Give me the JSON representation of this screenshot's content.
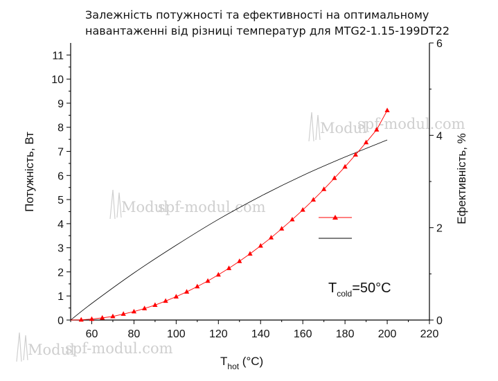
{
  "chart_data": {
    "type": "line",
    "title_line1": "Залежність потужності та ефективності на оптимальному",
    "title_line2": "навантаженні від різниці температур для MTG2-1.15-199DT22",
    "xlabel_main": "T",
    "xlabel_sub": "hot",
    "xlabel_unit": " (°C)",
    "ylabel_left": "Потужність, Вт",
    "ylabel_right": "Ефективність, %",
    "xlim": [
      50,
      220
    ],
    "ylim_left": [
      0,
      11.5
    ],
    "ylim_right": [
      0,
      6
    ],
    "x_ticks": [
      60,
      80,
      100,
      120,
      140,
      160,
      180,
      200,
      220
    ],
    "y_left_ticks": [
      0,
      1,
      2,
      3,
      4,
      5,
      6,
      7,
      8,
      9,
      10,
      11
    ],
    "y_right_ticks": [
      0,
      2,
      4,
      6
    ],
    "annotation_main": "T",
    "annotation_sub": "cold",
    "annotation_rest": "=50°C",
    "watermark": "spf-modul.com",
    "watermark_logo": "Modul",
    "colors": {
      "power": "#ff0000",
      "efficiency": "#000000",
      "axis": "#000000"
    },
    "series": [
      {
        "axis": "left",
        "marker": "triangle",
        "x": [
          50,
          55,
          60,
          65,
          70,
          75,
          80,
          85,
          90,
          95,
          100,
          105,
          110,
          115,
          120,
          125,
          130,
          135,
          140,
          145,
          150,
          155,
          160,
          165,
          170,
          175,
          180,
          185,
          190,
          195,
          200
        ],
        "values": [
          0.0,
          0.01,
          0.04,
          0.09,
          0.15,
          0.25,
          0.35,
          0.48,
          0.62,
          0.79,
          0.97,
          1.17,
          1.39,
          1.62,
          1.88,
          2.15,
          2.44,
          2.75,
          3.08,
          3.42,
          3.79,
          4.17,
          4.57,
          4.99,
          5.43,
          5.89,
          6.36,
          6.86,
          7.37,
          7.9,
          8.7
        ]
      },
      {
        "axis": "right",
        "marker": "none",
        "x": [
          50,
          60,
          80,
          100,
          120,
          140,
          160,
          180,
          200
        ],
        "values": [
          0.0,
          0.36,
          1.02,
          1.62,
          2.18,
          2.68,
          3.13,
          3.53,
          3.9
        ]
      }
    ],
    "legend_position": "center-right"
  }
}
